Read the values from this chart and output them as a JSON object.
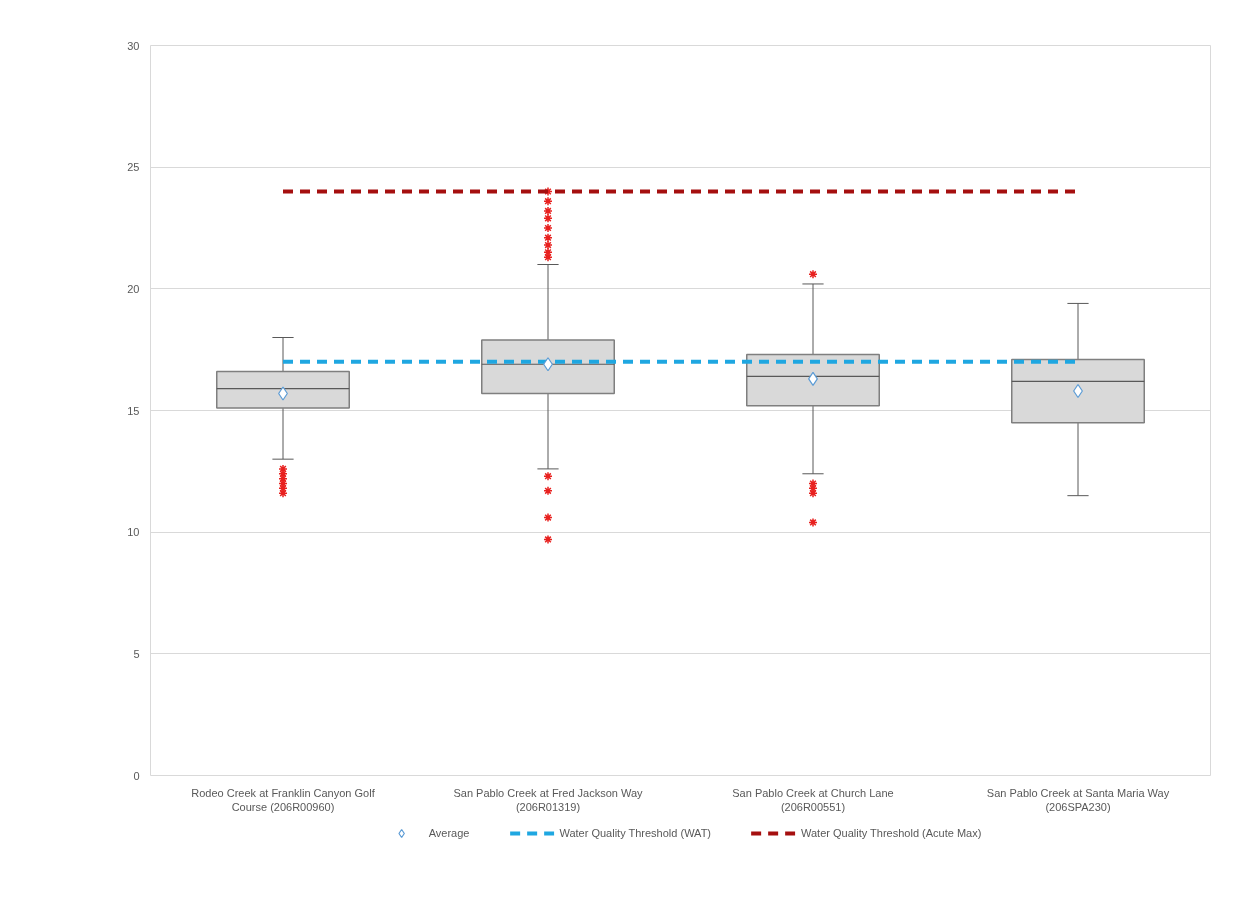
{
  "chart_data": {
    "type": "box",
    "categories": [
      "Rodeo Creek at Franklin Canyon Golf Course (206R00960)",
      "San Pablo Creek at Fred Jackson Way (206R01319)",
      "San Pablo Creek at Church Lane (206R00551)",
      "San Pablo Creek at Santa Maria Way (206SPA230)"
    ],
    "ylim": [
      0,
      30
    ],
    "yticks": [
      0,
      5,
      10,
      15,
      20,
      25,
      30
    ],
    "grid": "y",
    "legend": "bottom",
    "series": [
      {
        "color": "#d9d9d9",
        "boxes": [
          {
            "low": 13.0,
            "q1": 15.1,
            "median": 15.9,
            "q3": 16.6,
            "high": 18.0,
            "outliers": [
              12.6,
              12.4,
              12.2,
              12.0,
              11.8,
              11.6
            ]
          },
          {
            "low": 12.6,
            "q1": 15.7,
            "median": 16.9,
            "q3": 17.9,
            "high": 21.0,
            "outliers": [
              21.3,
              21.5,
              21.8,
              22.1,
              22.5,
              22.9,
              23.2,
              23.6,
              24.0,
              12.3,
              11.7,
              10.6,
              9.7
            ]
          },
          {
            "low": 12.4,
            "q1": 15.2,
            "median": 16.4,
            "q3": 17.3,
            "high": 20.2,
            "outliers": [
              20.6,
              12.0,
              11.8,
              11.6,
              10.4
            ]
          },
          {
            "low": 11.5,
            "q1": 14.5,
            "median": 16.2,
            "q3": 17.1,
            "high": 19.4
          }
        ]
      },
      {
        "type": "scatter",
        "name": "Average",
        "color": "#5b9bd5",
        "marker": "diamond",
        "values": [
          15.7,
          16.9,
          16.3,
          15.8
        ]
      },
      {
        "type": "line",
        "name": "Water Quality Threshold (WAT)",
        "color": "#1fa7e1",
        "line_style": "dashed",
        "values": [
          17,
          17,
          17,
          17
        ]
      },
      {
        "type": "line",
        "name": "Water Quality Threshold (Acute Max)",
        "color": "#a50f0f",
        "line_style": "dashed",
        "values": [
          24,
          24,
          24,
          24
        ]
      }
    ]
  }
}
